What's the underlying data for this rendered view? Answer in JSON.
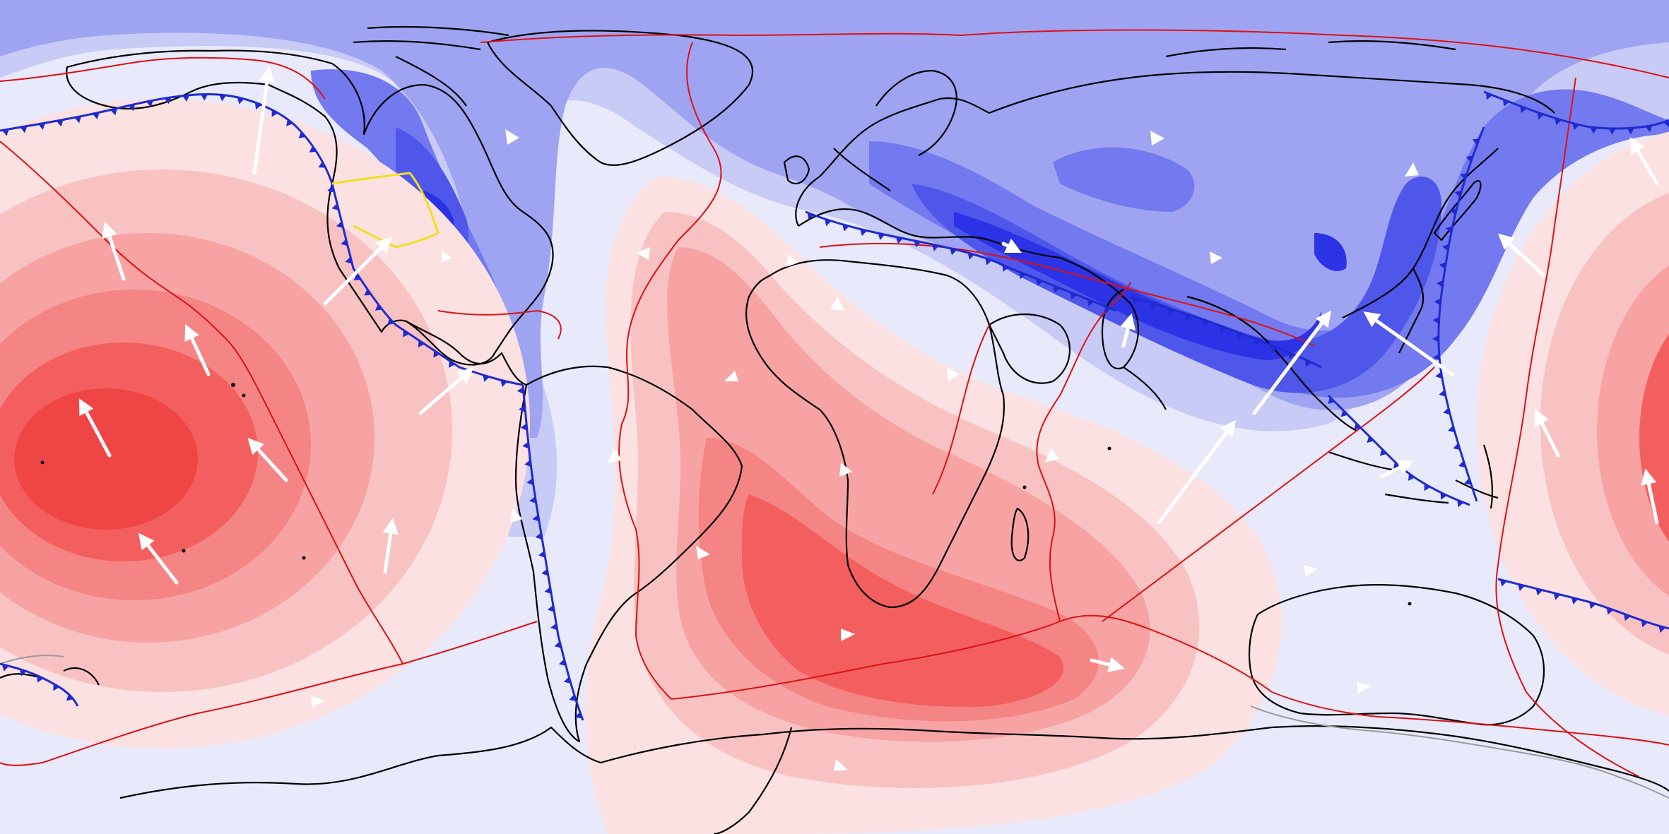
{
  "map": {
    "type": "equirectangular global field map (no text labels)",
    "fill_scale": {
      "positive": [
        "#fbe1e1",
        "#f9c2c2",
        "#f7a3a3",
        "#f58484",
        "#f35f5f",
        "#f04545"
      ],
      "neutral": "#e8e9fb",
      "negative": [
        "#c8cbf6",
        "#9ea4f2",
        "#7379ee",
        "#4f56ea",
        "#2c33e6"
      ]
    },
    "line_colors": {
      "coastline": "#000000",
      "plate_boundary": "#dd1111",
      "subduction_zone": "#1f2bd0",
      "highlighted_boundary": "#f0e020",
      "secondary_boundary": "#9a9a9a"
    },
    "vector_color": "#ffffff"
  }
}
